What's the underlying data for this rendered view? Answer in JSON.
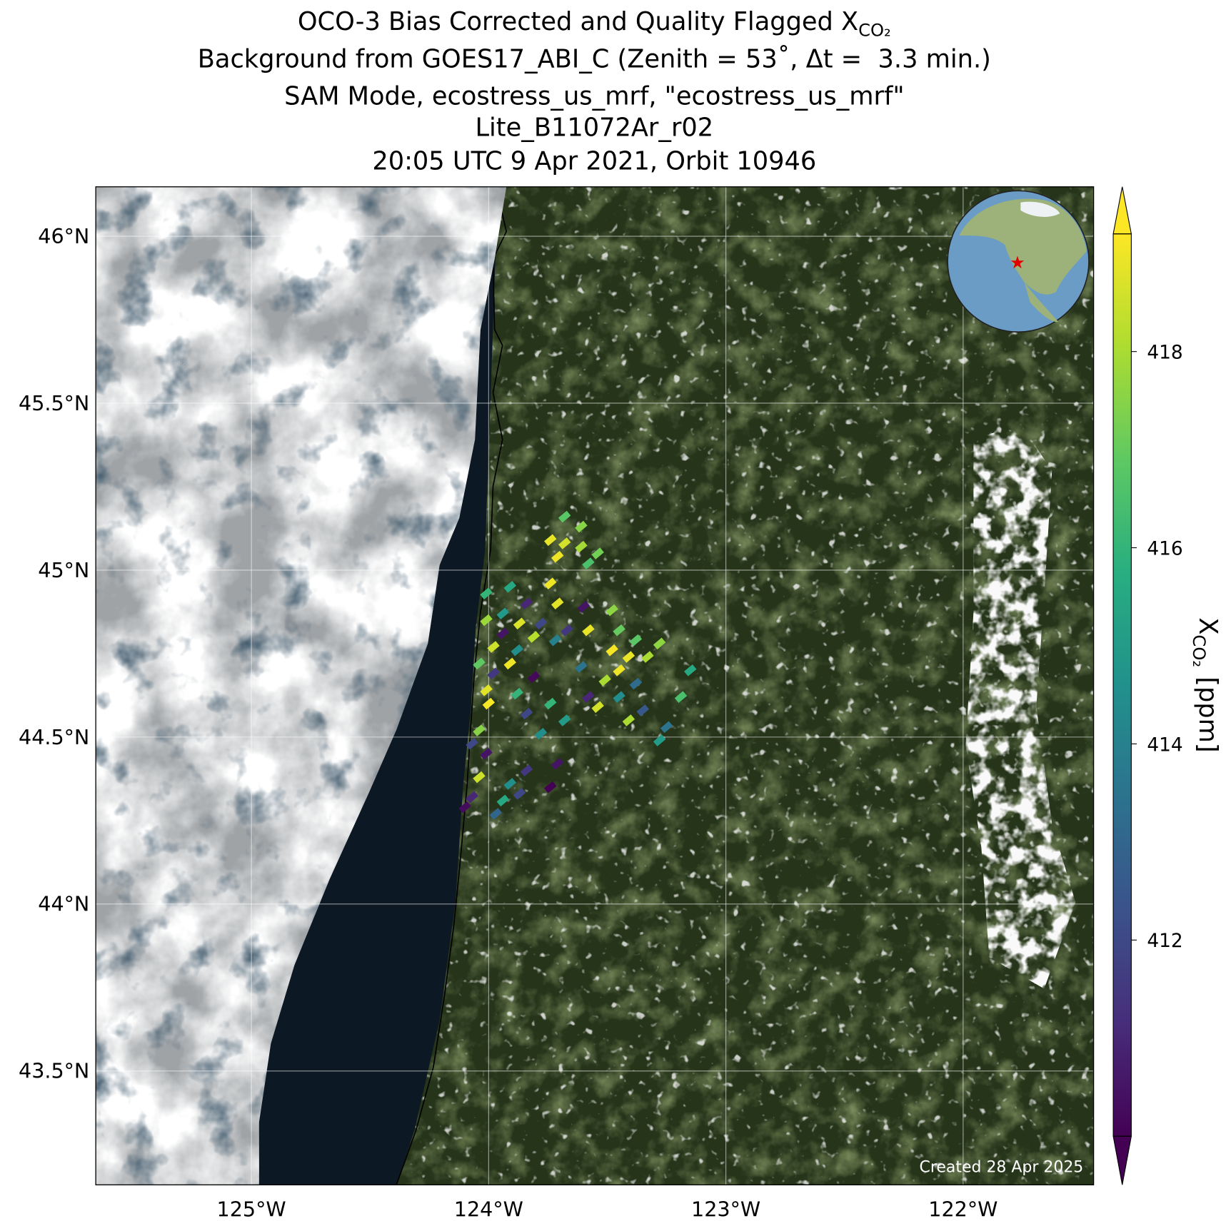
{
  "chart_data": {
    "type": "scatter",
    "title": [
      "OCO-3 Bias Corrected and Quality Flagged X",
      "Background from GOES17_ABI_C (Zenith = 53˚, Δt =  3.3 min.)",
      "SAM Mode, ecostress_us_mrf, \"ecostress_us_mrf\"",
      "Lite_B11072Ar_r02",
      "20:05 UTC 9 Apr 2021, Orbit 10946"
    ],
    "title_subscript": "CO₂",
    "xlim": [
      -125.656,
      -121.45
    ],
    "ylim": [
      43.159,
      46.148
    ],
    "xticks": [
      {
        "value": -125,
        "label": "125°W"
      },
      {
        "value": -124,
        "label": "124°W"
      },
      {
        "value": -123,
        "label": "123°W"
      },
      {
        "value": -122,
        "label": "122°W"
      }
    ],
    "yticks": [
      {
        "value": 43.5,
        "label": "43.5°N"
      },
      {
        "value": 44,
        "label": "44°N"
      },
      {
        "value": 44.5,
        "label": "44.5°N"
      },
      {
        "value": 45,
        "label": "45°N"
      },
      {
        "value": 45.5,
        "label": "45.5°N"
      },
      {
        "value": 46,
        "label": "46°N"
      }
    ],
    "grid": true,
    "x": [
      -123.68,
      -123.61,
      -123.74,
      -123.68,
      -123.61,
      -123.54,
      -123.71,
      -123.58,
      -123.74,
      -123.91,
      -124.01,
      -123.84,
      -123.71,
      -123.6,
      -123.48,
      -123.94,
      -124.01,
      -123.87,
      -123.78,
      -123.67,
      -123.58,
      -123.45,
      -123.94,
      -123.81,
      -123.72,
      -123.38,
      -123.28,
      -123.98,
      -123.88,
      -123.48,
      -123.41,
      -123.33,
      -124.04,
      -123.91,
      -123.61,
      -123.45,
      -123.15,
      -123.98,
      -123.81,
      -123.51,
      -123.38,
      -124.01,
      -123.88,
      -123.58,
      -123.45,
      -123.19,
      -124.0,
      -123.74,
      -123.54,
      -123.35,
      -123.84,
      -123.68,
      -123.41,
      -123.25,
      -124.04,
      -123.78,
      -124.07,
      -123.28,
      -124.01,
      -123.71,
      -123.84,
      -124.04,
      -123.91,
      -123.74,
      -123.87,
      -124.07,
      -123.94,
      -124.1,
      -123.97
    ],
    "y": [
      45.16,
      45.13,
      45.09,
      45.08,
      45.07,
      45.05,
      45.04,
      45.02,
      44.96,
      44.95,
      44.93,
      44.9,
      44.9,
      44.89,
      44.88,
      44.87,
      44.85,
      44.84,
      44.84,
      44.82,
      44.82,
      44.82,
      44.81,
      44.8,
      44.79,
      44.79,
      44.78,
      44.77,
      44.76,
      44.76,
      44.74,
      44.74,
      44.72,
      44.72,
      44.71,
      44.7,
      44.7,
      44.69,
      44.68,
      44.67,
      44.66,
      44.64,
      44.63,
      44.62,
      44.62,
      44.62,
      44.6,
      44.6,
      44.59,
      44.58,
      44.57,
      44.55,
      44.55,
      44.53,
      44.52,
      44.51,
      44.48,
      44.49,
      44.45,
      44.42,
      44.4,
      44.38,
      44.36,
      44.35,
      44.33,
      44.32,
      44.31,
      44.29,
      44.27
    ],
    "values": [
      416.8,
      417.5,
      418.9,
      418.6,
      417.9,
      417.2,
      419.0,
      416.5,
      419.0,
      415.5,
      416.0,
      411.0,
      418.8,
      410.5,
      417.6,
      414.9,
      417.8,
      418.7,
      412.0,
      411.5,
      418.9,
      417.0,
      410.5,
      418.2,
      414.0,
      416.8,
      417.6,
      418.5,
      414.5,
      419.1,
      418.9,
      418.0,
      416.9,
      419.0,
      413.5,
      419.0,
      415.5,
      411.5,
      410.2,
      418.0,
      413.2,
      418.8,
      416.0,
      411.0,
      414.4,
      416.5,
      419.1,
      416.0,
      418.6,
      412.5,
      412.0,
      415.0,
      418.0,
      413.5,
      417.5,
      414.5,
      412.0,
      415.0,
      410.5,
      410.5,
      411.5,
      418.5,
      414.5,
      410.0,
      412.0,
      411.0,
      415.5,
      410.3,
      413.0
    ],
    "colormap": [
      "#440154",
      "#472d7b",
      "#3b528b",
      "#2c728e",
      "#21918c",
      "#28ae80",
      "#5ec962",
      "#addc30",
      "#fde725"
    ],
    "clim": [
      410.0,
      419.2
    ],
    "cticks": [
      412,
      414,
      416,
      418
    ],
    "extend": "both",
    "colorbar_label": {
      "text": "X",
      "subscript": "CO₂",
      "unit": "[ppm]"
    },
    "note": "Created 28 Apr 2025"
  }
}
